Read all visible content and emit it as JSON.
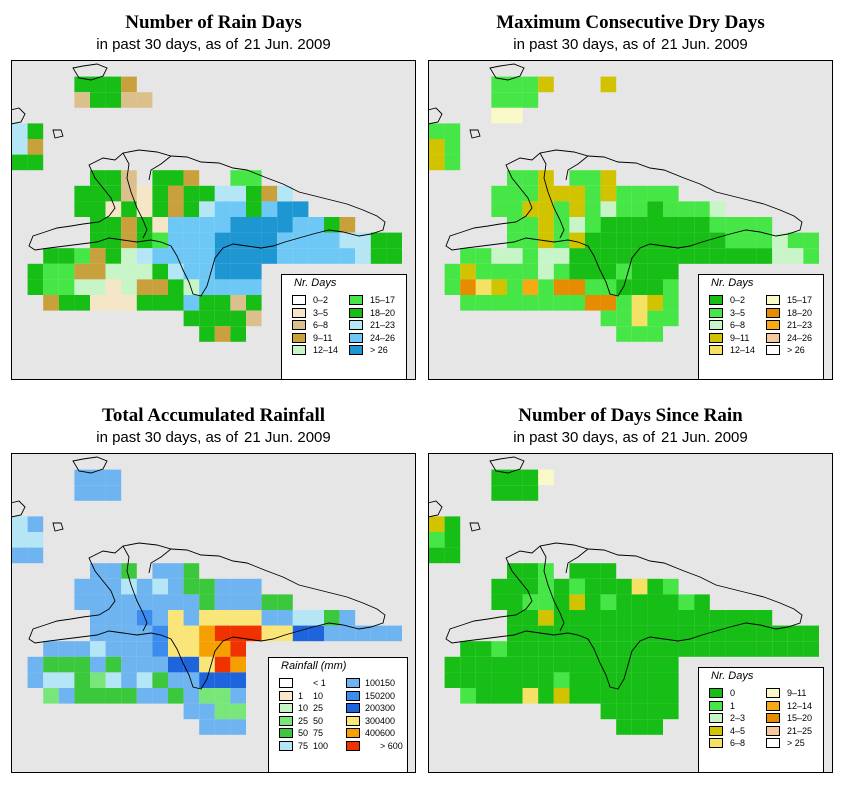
{
  "colors": {
    "map_background": "#e6e6e6",
    "coastline": "#000000"
  },
  "panels": [
    {
      "id": "rain-days",
      "title": "Number of Rain Days",
      "subtitle_prefix": "in past 30 days, as of",
      "subtitle_date": "21 Jun. 2009",
      "legend": {
        "title": "Nr. Days",
        "items": [
          {
            "label": "0–2",
            "color": "#ffffff"
          },
          {
            "label": "3–5",
            "color": "#f5e6c8"
          },
          {
            "label": "6–8",
            "color": "#dcc08c"
          },
          {
            "label": "9–11",
            "color": "#c8a03c"
          },
          {
            "label": "12–14",
            "color": "#c8f5c8"
          },
          {
            "label": "15–17",
            "color": "#46e646"
          },
          {
            "label": "18–20",
            "color": "#16be16"
          },
          {
            "label": "21–23",
            "color": "#b4e6f5"
          },
          {
            "label": "24–26",
            "color": "#6ec8f5"
          },
          {
            "label": "> 26",
            "color": "#1e96d2"
          }
        ]
      }
    },
    {
      "id": "dry-days",
      "title": "Maximum Consecutive Dry Days",
      "subtitle_prefix": "in past 30 days, as of",
      "subtitle_date": "21 Jun. 2009",
      "legend": {
        "title": "Nr. Days",
        "items": [
          {
            "label": "0–2",
            "color": "#16be16"
          },
          {
            "label": "3–5",
            "color": "#46e646"
          },
          {
            "label": "6–8",
            "color": "#c8f5c8"
          },
          {
            "label": "9–11",
            "color": "#d2c300"
          },
          {
            "label": "12–14",
            "color": "#f5e164"
          },
          {
            "label": "15–17",
            "color": "#fafac8"
          },
          {
            "label": "18–20",
            "color": "#e68c00"
          },
          {
            "label": "21–23",
            "color": "#f5aa14"
          },
          {
            "label": "24–26",
            "color": "#f5c8a0"
          },
          {
            "label": "> 26",
            "color": "#ffffff"
          }
        ]
      }
    },
    {
      "id": "rainfall",
      "title": "Total Accumulated Rainfall",
      "subtitle_prefix": "in past 30 days, as of",
      "subtitle_date": "21 Jun. 2009",
      "legend": {
        "title": "Rainfall (mm)",
        "items": [
          {
            "lo": "",
            "hi": "< 1",
            "color": "#ffffff"
          },
          {
            "lo": "1",
            "hi": "10",
            "color": "#fae6c8"
          },
          {
            "lo": "10",
            "hi": "25",
            "color": "#c8f5c8"
          },
          {
            "lo": "25",
            "hi": "50",
            "color": "#78e678"
          },
          {
            "lo": "50",
            "hi": "75",
            "color": "#3cc83c"
          },
          {
            "lo": "75",
            "hi": "100",
            "color": "#b4e6f5"
          },
          {
            "lo": "100",
            "hi": "150",
            "color": "#6eb4f0"
          },
          {
            "lo": "150",
            "hi": "200",
            "color": "#3c8cf0"
          },
          {
            "lo": "200",
            "hi": "300",
            "color": "#1e64dc"
          },
          {
            "lo": "300",
            "hi": "400",
            "color": "#fae678"
          },
          {
            "lo": "400",
            "hi": "600",
            "color": "#f5a000"
          },
          {
            "lo": "",
            "hi": "> 600",
            "color": "#f03200"
          }
        ]
      }
    },
    {
      "id": "days-since-rain",
      "title": "Number of Days Since Rain",
      "subtitle_prefix": "in past 30 days, as of",
      "subtitle_date": "21 Jun. 2009",
      "legend": {
        "title": "Nr. Days",
        "items": [
          {
            "label": "0",
            "color": "#16be16"
          },
          {
            "label": "1",
            "color": "#46e646"
          },
          {
            "label": "2–3",
            "color": "#c8f5c8"
          },
          {
            "label": "4–5",
            "color": "#d2c300"
          },
          {
            "label": "6–8",
            "color": "#f5e164"
          },
          {
            "label": "9–11",
            "color": "#fafac8"
          },
          {
            "label": "12–14",
            "color": "#f5aa14"
          },
          {
            "label": "15–20",
            "color": "#e68c00"
          },
          {
            "label": "21–25",
            "color": "#f5c8a0"
          },
          {
            "label": "> 25",
            "color": "#ffffff"
          }
        ]
      }
    }
  ]
}
